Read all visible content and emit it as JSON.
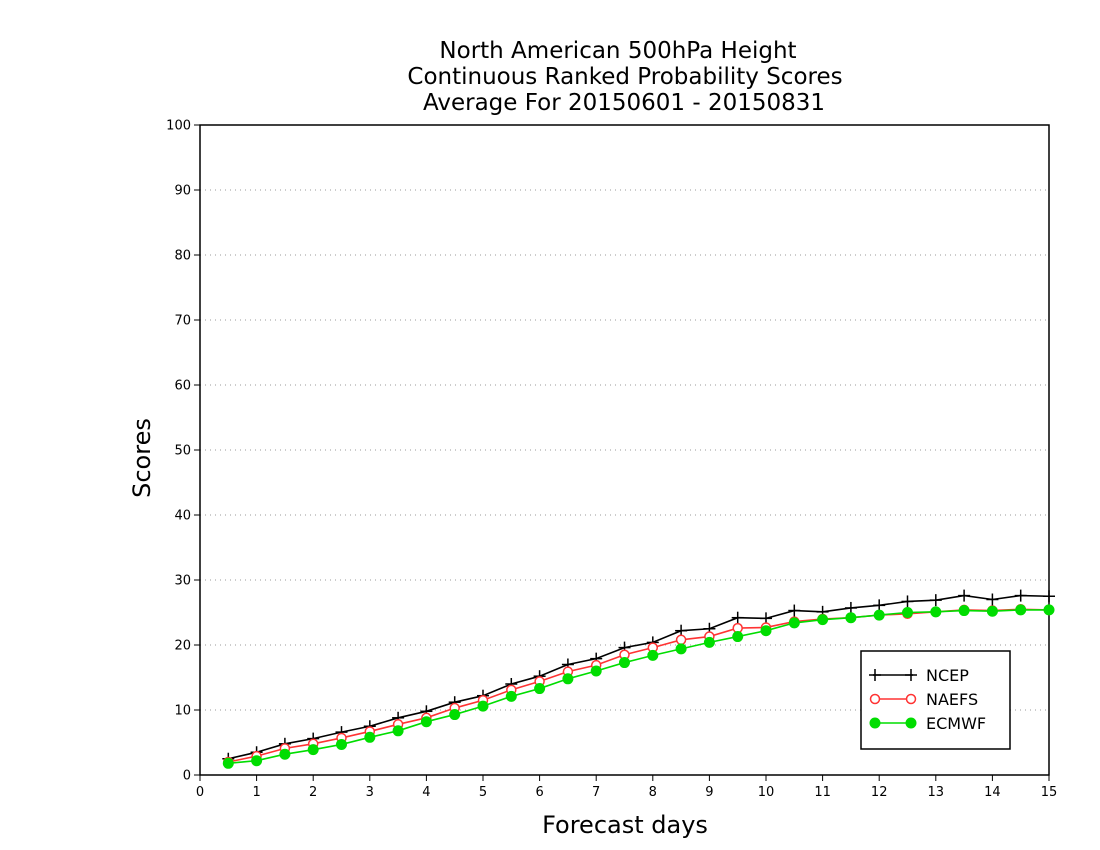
{
  "chart_data": {
    "type": "line",
    "title": [
      "North American 500hPa Height",
      "Continuous Ranked Probability Scores",
      "Average For 20150601 - 20150831"
    ],
    "xlabel": "Forecast days",
    "ylabel": "Scores",
    "xlim": [
      0,
      15
    ],
    "ylim": [
      0,
      100
    ],
    "xticks": [
      "0",
      "1",
      "2",
      "3",
      "4",
      "5",
      "6",
      "7",
      "8",
      "9",
      "10",
      "11",
      "12",
      "13",
      "14",
      "15"
    ],
    "yticks": [
      "0",
      "10",
      "20",
      "30",
      "40",
      "50",
      "60",
      "70",
      "80",
      "90",
      "100"
    ],
    "grid": "horizontal dotted",
    "legend_position": "bottom-right",
    "x": [
      0.5,
      1,
      1.5,
      2,
      2.5,
      3,
      3.5,
      4,
      4.5,
      5,
      5.5,
      6,
      6.5,
      7,
      7.5,
      8,
      8.5,
      9,
      9.5,
      10,
      10.5,
      11,
      11.5,
      12,
      12.5,
      13,
      13.5,
      14,
      14.5,
      15
    ],
    "series": [
      {
        "name": "NCEP",
        "color": "#000000",
        "marker": "plus",
        "values": [
          2.5,
          3.5,
          4.8,
          5.6,
          6.6,
          7.5,
          8.8,
          9.8,
          11.2,
          12.2,
          14.0,
          15.2,
          17.0,
          17.9,
          19.6,
          20.4,
          22.2,
          22.5,
          24.2,
          24.1,
          25.3,
          25.1,
          25.7,
          26.1,
          26.7,
          26.9,
          27.6,
          27.0,
          27.6,
          27.5
        ]
      },
      {
        "name": "NAEFS",
        "color": "#ff3333",
        "marker": "open-circle",
        "values": [
          2.0,
          2.9,
          4.1,
          4.8,
          5.7,
          6.7,
          7.8,
          8.8,
          10.3,
          11.5,
          13.1,
          14.4,
          15.9,
          16.9,
          18.5,
          19.6,
          20.8,
          21.3,
          22.6,
          22.7,
          23.6,
          24.0,
          24.2,
          24.6,
          24.8,
          25.1,
          25.4,
          25.3,
          25.5,
          25.4
        ]
      },
      {
        "name": "ECMWF",
        "color": "#00dd00",
        "marker": "filled-circle",
        "values": [
          1.8,
          2.2,
          3.2,
          3.9,
          4.7,
          5.8,
          6.8,
          8.2,
          9.3,
          10.6,
          12.1,
          13.3,
          14.8,
          16.0,
          17.3,
          18.4,
          19.4,
          20.4,
          21.3,
          22.2,
          23.4,
          23.9,
          24.2,
          24.6,
          25.0,
          25.1,
          25.3,
          25.2,
          25.4,
          25.4
        ]
      }
    ]
  }
}
